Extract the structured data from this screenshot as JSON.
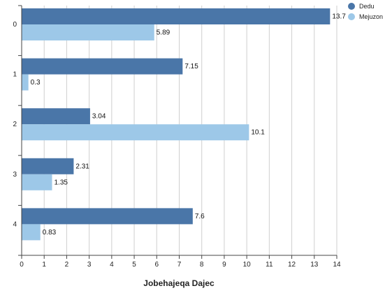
{
  "chart_data": {
    "type": "bar",
    "orientation": "horizontal",
    "categories": [
      "0",
      "1",
      "2",
      "3",
      "4"
    ],
    "series": [
      {
        "name": "Dedu",
        "color": "#4a76a8",
        "values": [
          13.7,
          7.15,
          3.04,
          2.31,
          7.6
        ]
      },
      {
        "name": "Mejuzon",
        "color": "#9dc8e8",
        "values": [
          5.89,
          0.3,
          10.1,
          1.35,
          0.83
        ]
      }
    ],
    "data_labels": [
      [
        "13.7",
        "7.15",
        "3.04",
        "2.31",
        "7.6"
      ],
      [
        "5.89",
        "0.3",
        "10.1",
        "1.35",
        "0.83"
      ]
    ],
    "xlabel": "Jobehajeqa Dajec",
    "ylabel": "",
    "xlim": [
      0,
      14
    ],
    "x_ticks": [
      "0",
      "1",
      "2",
      "3",
      "4",
      "5",
      "6",
      "7",
      "8",
      "9",
      "10",
      "11",
      "12",
      "13",
      "14"
    ],
    "grid": "vertical",
    "legend_position": "top-right"
  }
}
